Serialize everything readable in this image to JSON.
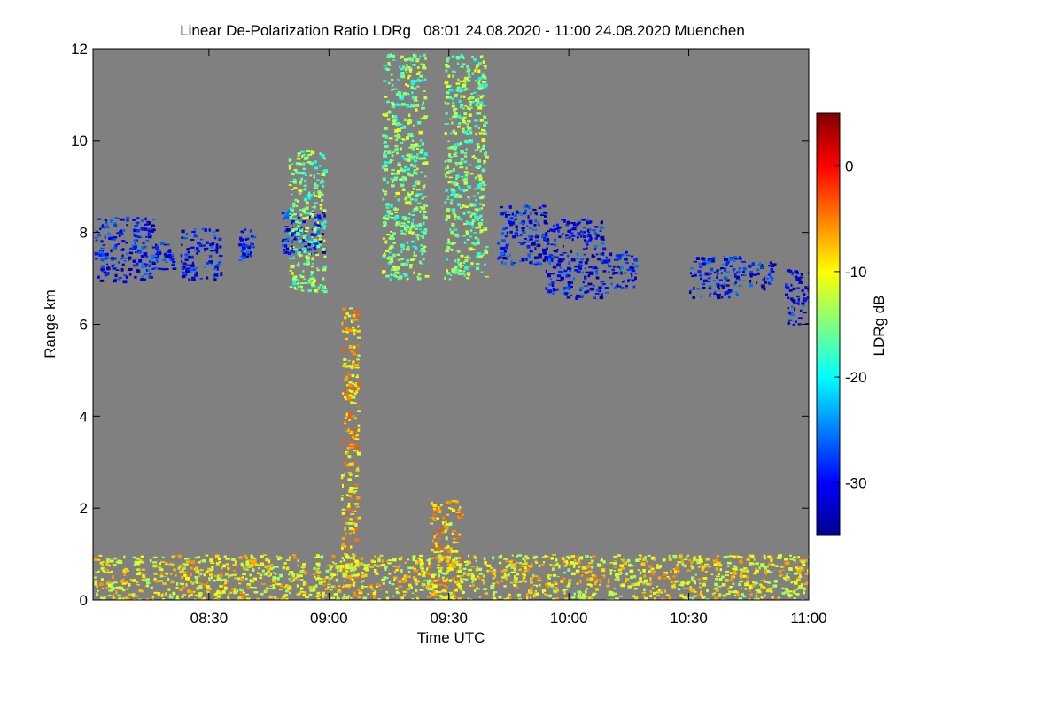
{
  "chart_data": {
    "type": "heatmap",
    "title": "Linear De-Polarization Ratio LDRg   08:01 24.08.2020 - 11:00 24.08.2020 Muenchen",
    "xlabel": "Time UTC",
    "ylabel": "Range km",
    "xlim_hours": [
      8.0167,
      11.0
    ],
    "ylim_km": [
      0,
      12
    ],
    "x_ticks": [
      {
        "label": "08:30",
        "value": 8.5
      },
      {
        "label": "09:00",
        "value": 9.0
      },
      {
        "label": "09:30",
        "value": 9.5
      },
      {
        "label": "10:00",
        "value": 10.0
      },
      {
        "label": "10:30",
        "value": 10.5
      },
      {
        "label": "11:00",
        "value": 11.0
      }
    ],
    "y_ticks": [
      {
        "label": "0",
        "value": 0
      },
      {
        "label": "2",
        "value": 2
      },
      {
        "label": "4",
        "value": 4
      },
      {
        "label": "6",
        "value": 6
      },
      {
        "label": "8",
        "value": 8
      },
      {
        "label": "10",
        "value": 10
      },
      {
        "label": "12",
        "value": 12
      }
    ],
    "colorbar": {
      "label": "LDRg dB",
      "range": [
        -35,
        5
      ],
      "ticks": [
        {
          "label": "0",
          "value": 0
        },
        {
          "label": "-10",
          "value": -10
        },
        {
          "label": "-20",
          "value": -20
        },
        {
          "label": "-30",
          "value": -30
        }
      ]
    },
    "background": "#808080",
    "features": [
      {
        "name": "cirrus-layer",
        "value_db": -30,
        "patches": [
          {
            "t0": 8.02,
            "t1": 8.27,
            "z0": 6.95,
            "z1": 8.35
          },
          {
            "t0": 8.27,
            "t1": 8.35,
            "z0": 7.2,
            "z1": 7.8
          },
          {
            "t0": 8.38,
            "t1": 8.55,
            "z0": 7.0,
            "z1": 8.1
          },
          {
            "t0": 8.62,
            "t1": 8.68,
            "z0": 7.4,
            "z1": 8.1
          },
          {
            "t0": 8.8,
            "t1": 8.98,
            "z0": 7.55,
            "z1": 8.5
          },
          {
            "t0": 9.7,
            "t1": 9.9,
            "z0": 7.3,
            "z1": 8.6
          },
          {
            "t0": 9.9,
            "t1": 10.15,
            "z0": 6.6,
            "z1": 8.3
          },
          {
            "t0": 10.15,
            "t1": 10.28,
            "z0": 6.8,
            "z1": 7.6
          },
          {
            "t0": 10.5,
            "t1": 10.72,
            "z0": 6.6,
            "z1": 7.5
          },
          {
            "t0": 10.72,
            "t1": 10.85,
            "z0": 6.8,
            "z1": 7.4
          },
          {
            "t0": 10.9,
            "t1": 11.0,
            "z0": 6.0,
            "z1": 7.2
          }
        ]
      },
      {
        "name": "fall-streaks",
        "value_db": -15,
        "patches": [
          {
            "t0": 8.83,
            "t1": 8.98,
            "z0": 6.7,
            "z1": 9.8
          },
          {
            "t0": 9.22,
            "t1": 9.4,
            "z0": 7.0,
            "z1": 11.9
          },
          {
            "t0": 9.48,
            "t1": 9.65,
            "z0": 7.0,
            "z1": 11.9
          }
        ]
      },
      {
        "name": "convective-plumes",
        "value_db": -8,
        "patches": [
          {
            "t0": 9.05,
            "t1": 9.12,
            "z0": 0.3,
            "z1": 6.4
          },
          {
            "t0": 9.42,
            "t1": 9.55,
            "z0": 0.3,
            "z1": 2.2
          }
        ]
      },
      {
        "name": "boundary-layer",
        "value_db": -10,
        "patches": [
          {
            "t0": 8.02,
            "t1": 11.0,
            "z0": 0.0,
            "z1": 1.0
          }
        ]
      }
    ]
  }
}
